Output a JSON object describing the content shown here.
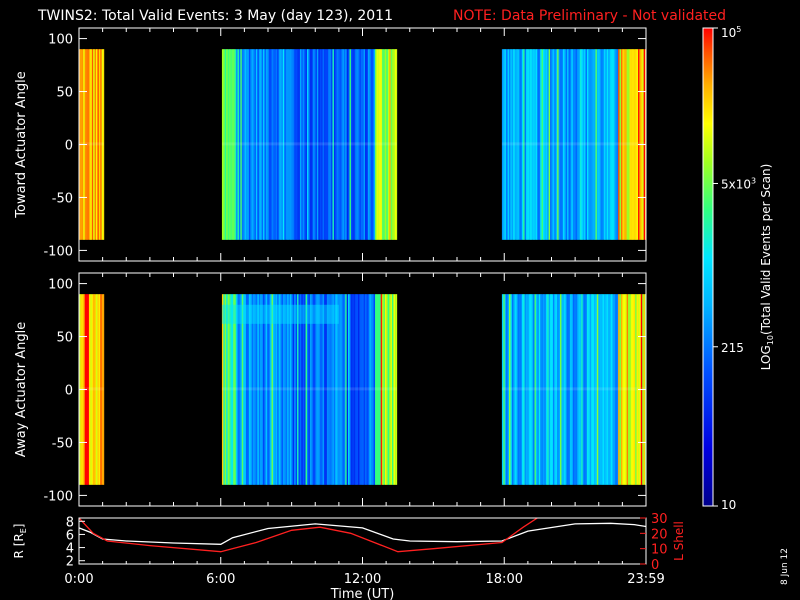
{
  "title": {
    "main": "TWINS2: Total Valid Events:  3 May (day 123), 2011",
    "note": "NOTE: Data Preliminary - Not validated"
  },
  "colors": {
    "background": "#000000",
    "foreground": "#ffffff",
    "note": "#ff2020",
    "lshell": "#ff2020"
  },
  "chart_data": [
    {
      "type": "heatmap",
      "name": "toward",
      "ylabel": "Toward Actuator Angle",
      "ylim": [
        -110,
        110
      ],
      "yticks": [
        100,
        50,
        0,
        -50,
        -100
      ],
      "angle_range": [
        -90,
        90
      ],
      "xlim_hours": [
        0,
        24
      ],
      "data_intervals_hours": [
        [
          0,
          1.05
        ],
        [
          6.05,
          13.45
        ],
        [
          17.9,
          24
        ]
      ]
    },
    {
      "type": "heatmap",
      "name": "away",
      "ylabel": "Away Actuator Angle",
      "ylim": [
        -110,
        110
      ],
      "yticks": [
        100,
        50,
        0,
        -50,
        -100
      ],
      "angle_range": [
        -90,
        90
      ],
      "xlim_hours": [
        0,
        24
      ],
      "data_intervals_hours": [
        [
          0,
          1.05
        ],
        [
          6.05,
          13.45
        ],
        [
          17.9,
          24
        ]
      ]
    },
    {
      "type": "line",
      "name": "ephemeris",
      "ylabel_left": "R [R",
      "ylabel_left_sub": "E",
      "ylabel_left_end": "]",
      "yticks_left": [
        "8",
        "6",
        "4",
        "2"
      ],
      "ylim_left": [
        1.5,
        8.5
      ],
      "ylabel_right": "L Shell",
      "yticks_right": [
        "30",
        "20",
        "10",
        "0"
      ],
      "ylim_right": [
        0,
        30
      ],
      "xlim_hours": [
        0,
        24
      ],
      "xticks": [
        "0:00",
        "6:00",
        "12:00",
        "18:00",
        "23:59"
      ],
      "xticks_hours": [
        0,
        6,
        12,
        18,
        24
      ],
      "xlabel": "Time (UT)",
      "series": [
        {
          "key": "R",
          "color": "#ffffff",
          "hours": [
            0,
            0.5,
            1,
            2,
            4,
            6,
            6.5,
            8,
            10,
            12,
            13.3,
            14,
            16,
            17.9,
            19,
            21,
            22.5,
            23.5,
            24
          ],
          "values": [
            7.0,
            6.3,
            5.3,
            5.0,
            4.7,
            4.5,
            5.5,
            6.9,
            7.6,
            7.0,
            5.3,
            5.0,
            4.9,
            5.0,
            6.5,
            7.6,
            7.7,
            7.5,
            7.2
          ]
        },
        {
          "key": "L",
          "color": "#ff2020",
          "hours": [
            0,
            0.6,
            1.2,
            3,
            6,
            7.5,
            9,
            10.2,
            11.5,
            12.5,
            13.5,
            15,
            17.9,
            18.8,
            19.4
          ],
          "values": [
            30,
            20,
            15,
            12,
            8,
            14,
            22,
            24,
            20,
            14,
            8,
            10,
            14,
            24,
            30
          ]
        }
      ]
    },
    {
      "type": "colorbar",
      "name": "colorbar",
      "label": "LOG",
      "label_sub": "10",
      "label_end": "(Total Valid Events per Scan)",
      "ticks": [
        {
          "base": "10",
          "exp": "5",
          "value": 100000
        },
        {
          "base": "5x10",
          "exp": "3",
          "value": 5000
        },
        {
          "base": "215",
          "exp": "",
          "value": 215
        },
        {
          "base": "10",
          "exp": "",
          "value": 10
        }
      ],
      "range": [
        10,
        100000
      ]
    }
  ],
  "footer": {
    "date_stamp": "8 Jun 12"
  }
}
